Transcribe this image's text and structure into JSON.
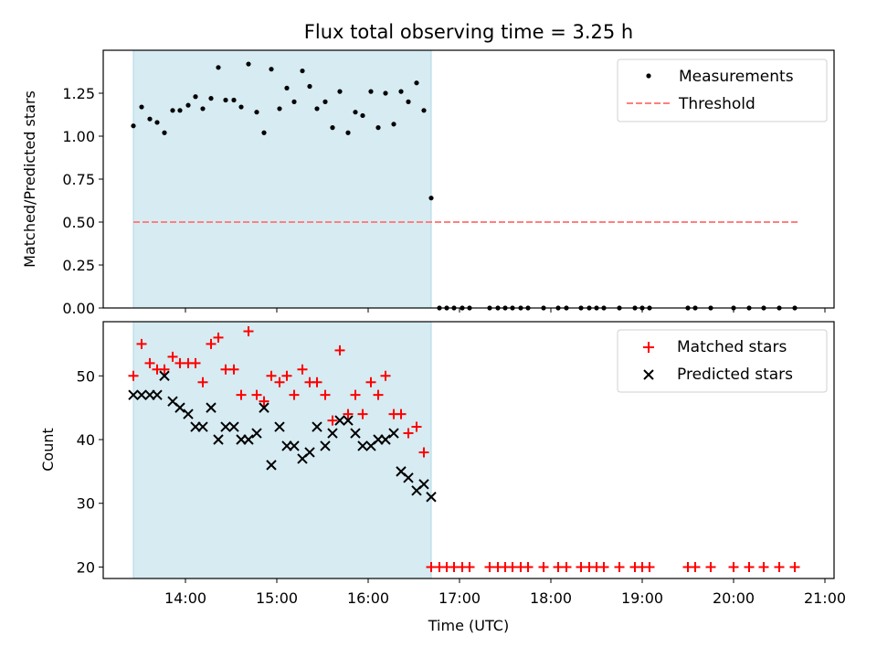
{
  "chart_data": [
    {
      "type": "scatter",
      "title": "Flux total observing time = 3.25 h",
      "xlabel": "",
      "ylabel": "Matched/Predicted stars",
      "xlim": [
        13.1,
        21.1
      ],
      "ylim": [
        0.0,
        1.5
      ],
      "yticks": [
        0.0,
        0.25,
        0.5,
        0.75,
        1.0,
        1.25
      ],
      "ytick_labels": [
        "0.00",
        "0.25",
        "0.50",
        "0.75",
        "1.00",
        "1.25"
      ],
      "shaded_span": [
        13.43,
        16.69
      ],
      "shade_color": "#add8e6",
      "legend_position": "upper right",
      "series": [
        {
          "name": "Measurements",
          "marker": "dot",
          "color": "#000000",
          "x": [
            13.43,
            13.52,
            13.61,
            13.69,
            13.77,
            13.86,
            13.94,
            14.03,
            14.11,
            14.19,
            14.28,
            14.36,
            14.44,
            14.53,
            14.61,
            14.69,
            14.78,
            14.86,
            14.94,
            15.03,
            15.11,
            15.19,
            15.28,
            15.36,
            15.44,
            15.53,
            15.61,
            15.69,
            15.78,
            15.86,
            15.94,
            16.03,
            16.11,
            16.19,
            16.28,
            16.36,
            16.44,
            16.53,
            16.61,
            16.69,
            16.78,
            16.86,
            16.94,
            17.03,
            17.11,
            17.33,
            17.42,
            17.5,
            17.58,
            17.67,
            17.75,
            17.92,
            18.08,
            18.17,
            18.33,
            18.42,
            18.5,
            18.58,
            18.75,
            18.92,
            19.0,
            19.08,
            19.5,
            19.58,
            19.75,
            20.0,
            20.17,
            20.33,
            20.5,
            20.67
          ],
          "y": [
            1.06,
            1.17,
            1.1,
            1.08,
            1.02,
            1.15,
            1.15,
            1.18,
            1.23,
            1.16,
            1.22,
            1.4,
            1.21,
            1.21,
            1.17,
            1.42,
            1.14,
            1.02,
            1.39,
            1.16,
            1.28,
            1.2,
            1.38,
            1.29,
            1.16,
            1.2,
            1.05,
            1.26,
            1.02,
            1.14,
            1.12,
            1.26,
            1.05,
            1.25,
            1.07,
            1.26,
            1.2,
            1.31,
            1.15,
            0.64,
            0.0,
            0.0,
            0.0,
            0.0,
            0.0,
            0.0,
            0.0,
            0.0,
            0.0,
            0.0,
            0.0,
            0.0,
            0.0,
            0.0,
            0.0,
            0.0,
            0.0,
            0.0,
            0.0,
            0.0,
            0.0,
            0.0,
            0.0,
            0.0,
            0.0,
            0.0,
            0.0,
            0.0,
            0.0,
            0.0
          ]
        },
        {
          "name": "Threshold",
          "marker": "dashed-line",
          "color": "#ff7f7f",
          "x": [
            13.43,
            20.73
          ],
          "y": [
            0.5,
            0.5
          ]
        }
      ]
    },
    {
      "type": "scatter",
      "title": "",
      "xlabel": "Time (UTC)",
      "ylabel": "Count",
      "xlim": [
        13.1,
        21.1
      ],
      "ylim": [
        18.2,
        58.5
      ],
      "yticks": [
        20,
        30,
        40,
        50
      ],
      "ytick_labels": [
        "20",
        "30",
        "40",
        "50"
      ],
      "xticks": [
        14,
        15,
        16,
        17,
        18,
        19,
        20,
        21
      ],
      "xtick_labels": [
        "14:00",
        "15:00",
        "16:00",
        "17:00",
        "18:00",
        "19:00",
        "20:00",
        "21:00"
      ],
      "shaded_span": [
        13.43,
        16.69
      ],
      "shade_color": "#add8e6",
      "legend_position": "upper right",
      "series": [
        {
          "name": "Matched stars",
          "marker": "plus",
          "color": "#ff0000",
          "x": [
            13.43,
            13.52,
            13.61,
            13.69,
            13.77,
            13.86,
            13.94,
            14.03,
            14.11,
            14.19,
            14.28,
            14.36,
            14.44,
            14.53,
            14.61,
            14.69,
            14.78,
            14.86,
            14.94,
            15.03,
            15.11,
            15.19,
            15.28,
            15.36,
            15.44,
            15.53,
            15.61,
            15.69,
            15.78,
            15.86,
            15.94,
            16.03,
            16.11,
            16.19,
            16.28,
            16.36,
            16.44,
            16.53,
            16.61,
            16.69,
            16.78,
            16.86,
            16.94,
            17.03,
            17.11,
            17.33,
            17.42,
            17.5,
            17.58,
            17.67,
            17.75,
            17.92,
            18.08,
            18.17,
            18.33,
            18.42,
            18.5,
            18.58,
            18.75,
            18.92,
            19.0,
            19.08,
            19.5,
            19.58,
            19.75,
            20.0,
            20.17,
            20.33,
            20.5,
            20.67
          ],
          "y": [
            50,
            55,
            52,
            51,
            51,
            53,
            52,
            52,
            52,
            49,
            55,
            56,
            51,
            51,
            47,
            57,
            47,
            46,
            50,
            49,
            50,
            47,
            51,
            49,
            49,
            47,
            43,
            54,
            44,
            47,
            44,
            49,
            47,
            50,
            44,
            44,
            41,
            42,
            38,
            20,
            20,
            20,
            20,
            20,
            20,
            20,
            20,
            20,
            20,
            20,
            20,
            20,
            20,
            20,
            20,
            20,
            20,
            20,
            20,
            20,
            20,
            20,
            20,
            20,
            20,
            20,
            20,
            20,
            20,
            20
          ]
        },
        {
          "name": "Predicted stars",
          "marker": "x",
          "color": "#000000",
          "x": [
            13.43,
            13.52,
            13.61,
            13.69,
            13.77,
            13.86,
            13.94,
            14.03,
            14.11,
            14.19,
            14.28,
            14.36,
            14.44,
            14.53,
            14.61,
            14.69,
            14.78,
            14.86,
            14.94,
            15.03,
            15.11,
            15.19,
            15.28,
            15.36,
            15.44,
            15.53,
            15.61,
            15.69,
            15.78,
            15.86,
            15.94,
            16.03,
            16.11,
            16.19,
            16.28,
            16.36,
            16.44,
            16.53,
            16.61,
            16.69
          ],
          "y": [
            47,
            47,
            47,
            47,
            50,
            46,
            45,
            44,
            42,
            42,
            45,
            40,
            42,
            42,
            40,
            40,
            41,
            45,
            36,
            42,
            39,
            39,
            37,
            38,
            42,
            39,
            41,
            43,
            43,
            41,
            39,
            39,
            40,
            40,
            41,
            35,
            34,
            32,
            33,
            31
          ]
        }
      ]
    }
  ]
}
